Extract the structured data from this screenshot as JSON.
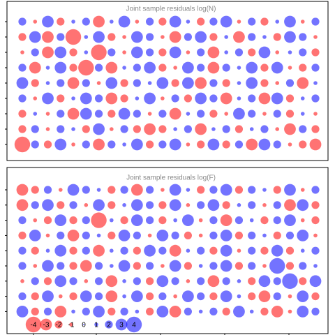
{
  "chart_data": [
    {
      "type": "bubble",
      "title": "Joint sample residuals log(N)",
      "positive_color": "#0000ff",
      "negative_color": "#ff0000",
      "opacity": 0.55,
      "residuals": [
        [
          2,
          -1,
          3,
          -2,
          1,
          2,
          -3,
          1,
          3,
          -1,
          2,
          -2,
          3,
          1,
          -2,
          2,
          3,
          -1,
          2,
          -2,
          1,
          3,
          -1,
          2
        ],
        [
          -2,
          3,
          -3,
          2,
          -4,
          1,
          3,
          -2,
          -1,
          3,
          2,
          -1,
          -3,
          2,
          3,
          -2,
          1,
          -3,
          2,
          1,
          -2,
          3,
          2,
          -1
        ],
        [
          -1,
          2,
          -3,
          3,
          -2,
          1,
          -4,
          2,
          -1,
          3,
          2,
          -2,
          3,
          -1,
          2,
          -3,
          1,
          2,
          -2,
          3,
          -1,
          1,
          2,
          -2
        ],
        [
          2,
          -3,
          1,
          3,
          -2,
          -4,
          2,
          -3,
          1,
          2,
          3,
          -2,
          -1,
          3,
          2,
          -3,
          2,
          1,
          3,
          -2,
          3,
          -1,
          -2,
          2
        ],
        [
          3,
          -2,
          1,
          2,
          -3,
          2,
          -1,
          3,
          -2,
          2,
          1,
          3,
          -2,
          3,
          -3,
          2,
          -2,
          1,
          3,
          -2,
          -1,
          2,
          -3,
          1
        ],
        [
          2,
          -1,
          3,
          -2,
          1,
          3,
          2,
          -3,
          -2,
          1,
          3,
          -1,
          2,
          -2,
          3,
          2,
          -3,
          1,
          2,
          -3,
          3,
          -2,
          1,
          2
        ],
        [
          -2,
          1,
          -1,
          2,
          -3,
          3,
          2,
          -2,
          3,
          2,
          -1,
          2,
          -3,
          1,
          2,
          -2,
          -1,
          3,
          2,
          -1,
          2,
          -2,
          1,
          -1
        ],
        [
          -2,
          2,
          -1,
          2,
          1,
          -2,
          3,
          -1,
          2,
          -2,
          -3,
          -2,
          1,
          2,
          -3,
          1,
          2,
          -2,
          1,
          2,
          -1,
          -3,
          2,
          -2
        ],
        [
          -4,
          2,
          -2,
          3,
          -1,
          2,
          -3,
          2,
          1,
          3,
          -2,
          2,
          3,
          -1,
          -2,
          3,
          -2,
          2,
          -3,
          3,
          2,
          -1,
          -2,
          -3
        ]
      ]
    },
    {
      "type": "bubble",
      "title": "Joint sample residuals log(F)",
      "positive_color": "#0000ff",
      "negative_color": "#ff0000",
      "opacity": 0.55,
      "residuals": [
        [
          -3,
          -2,
          2,
          -1,
          3,
          2,
          1,
          -2,
          2,
          -3,
          2,
          -1,
          3,
          1,
          -2,
          2,
          3,
          -2,
          2,
          1,
          -2,
          3,
          -1,
          2
        ],
        [
          -3,
          2,
          3,
          -2,
          2,
          -1,
          3,
          -2,
          1,
          3,
          2,
          -2,
          3,
          -1,
          2,
          3,
          -2,
          1,
          2,
          -1,
          2,
          -3,
          3,
          -2
        ],
        [
          2,
          -1,
          -2,
          3,
          -2,
          2,
          -4,
          1,
          -2,
          3,
          2,
          -2,
          1,
          3,
          -1,
          2,
          -3,
          2,
          1,
          -2,
          2,
          3,
          -1,
          -2
        ],
        [
          -2,
          3,
          -1,
          2,
          -3,
          2,
          1,
          -2,
          3,
          2,
          -1,
          3,
          2,
          -2,
          -1,
          2,
          3,
          -2,
          2,
          1,
          -2,
          2,
          3,
          -1
        ],
        [
          2,
          -2,
          1,
          3,
          -2,
          2,
          -3,
          1,
          2,
          -2,
          3,
          2,
          -3,
          1,
          2,
          -2,
          3,
          -1,
          2,
          -2,
          3,
          -2,
          1,
          2
        ],
        [
          2,
          -1,
          3,
          2,
          -2,
          -3,
          2,
          1,
          3,
          -2,
          2,
          -1,
          3,
          -2,
          1,
          2,
          3,
          -2,
          2,
          -1,
          4,
          -2,
          2,
          1
        ],
        [
          -1,
          2,
          -2,
          3,
          2,
          -1,
          2,
          -3,
          1,
          2,
          -2,
          3,
          2,
          -1,
          2,
          -3,
          2,
          1,
          -2,
          3,
          2,
          4,
          -2,
          3
        ],
        [
          2,
          -2,
          3,
          -1,
          -2,
          3,
          2,
          -3,
          1,
          3,
          -2,
          2,
          -1,
          3,
          2,
          -2,
          3,
          1,
          -2,
          -3,
          2,
          -1,
          3,
          -2
        ],
        [
          3,
          -2,
          2,
          -3,
          1,
          2,
          3,
          -2,
          2,
          1,
          -2,
          3,
          -3,
          2,
          1,
          2,
          -2,
          3,
          1,
          -2,
          -3,
          -1,
          3,
          2
        ]
      ],
      "legend": [
        -4,
        -3,
        -2,
        -1,
        0,
        1,
        2,
        3,
        4
      ]
    }
  ]
}
